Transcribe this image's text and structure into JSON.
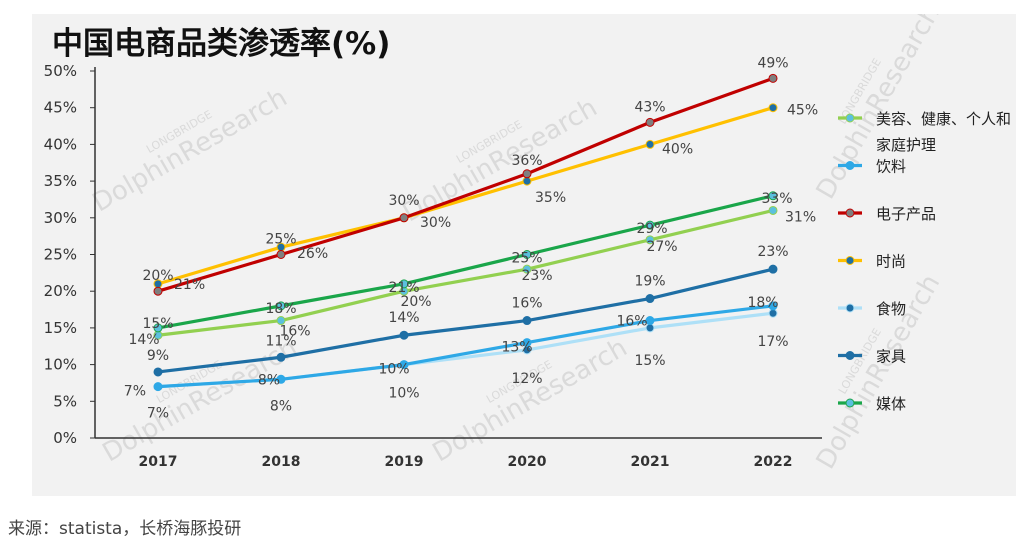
{
  "source": "来源：statista，长桥海豚投研",
  "chart_data": {
    "type": "line",
    "title": "中国电商品类渗透率(%)",
    "xlabel": "",
    "ylabel": "",
    "x": [
      "2017",
      "2018",
      "2019",
      "2020",
      "2021",
      "2022"
    ],
    "ylim": [
      0,
      50
    ],
    "yticks": [
      "0%",
      "5%",
      "10%",
      "15%",
      "20%",
      "25%",
      "30%",
      "35%",
      "40%",
      "45%",
      "50%"
    ],
    "grid": false,
    "legend_position": "right",
    "watermark": "LONGBRIDGE DolphinResearch",
    "series": [
      {
        "name": "美容、健康、个人和家庭护理",
        "color": "#92d050",
        "marker": "#5bc0de",
        "values": [
          14,
          16,
          20,
          23,
          27,
          31
        ],
        "labels": [
          "14%",
          "16%",
          "20%",
          "23%",
          "27%",
          "31%"
        ]
      },
      {
        "name": "饮料",
        "color": "#2ea8e6",
        "marker": "#2ea8e6",
        "values": [
          7,
          8,
          10,
          13,
          16,
          18
        ],
        "labels": [
          "7%",
          "8%",
          "10%",
          "13%",
          "16%",
          "18%"
        ]
      },
      {
        "name": "电子产品",
        "color": "#c00000",
        "marker": "#7f7f7f",
        "values": [
          20,
          25,
          30,
          36,
          43,
          49
        ],
        "labels": [
          "20%",
          "25%",
          "30%",
          "36%",
          "43%",
          "49%"
        ]
      },
      {
        "name": "时尚",
        "color": "#ffc000",
        "marker": "#1f6fa5",
        "values": [
          21,
          26,
          30,
          35,
          40,
          45
        ],
        "labels": [
          "21%",
          "26%",
          "30%",
          "35%",
          "40%",
          "45%"
        ]
      },
      {
        "name": "食物",
        "color": "#aee0f7",
        "marker": "#1f6fa5",
        "values": [
          7,
          8,
          10,
          12,
          15,
          17
        ],
        "labels": [
          "7%",
          "8%",
          "10%",
          "12%",
          "15%",
          "17%"
        ]
      },
      {
        "name": "家具",
        "color": "#1f6fa5",
        "marker": "#1f6fa5",
        "values": [
          9,
          11,
          14,
          16,
          19,
          23
        ],
        "labels": [
          "9%",
          "11%",
          "14%",
          "16%",
          "19%",
          "23%"
        ]
      },
      {
        "name": "媒体",
        "color": "#1aa64a",
        "marker": "#5bc0de",
        "values": [
          15,
          18,
          21,
          25,
          29,
          33
        ],
        "labels": [
          "15%",
          "18%",
          "21%",
          "25%",
          "29%",
          "33%"
        ]
      }
    ]
  }
}
